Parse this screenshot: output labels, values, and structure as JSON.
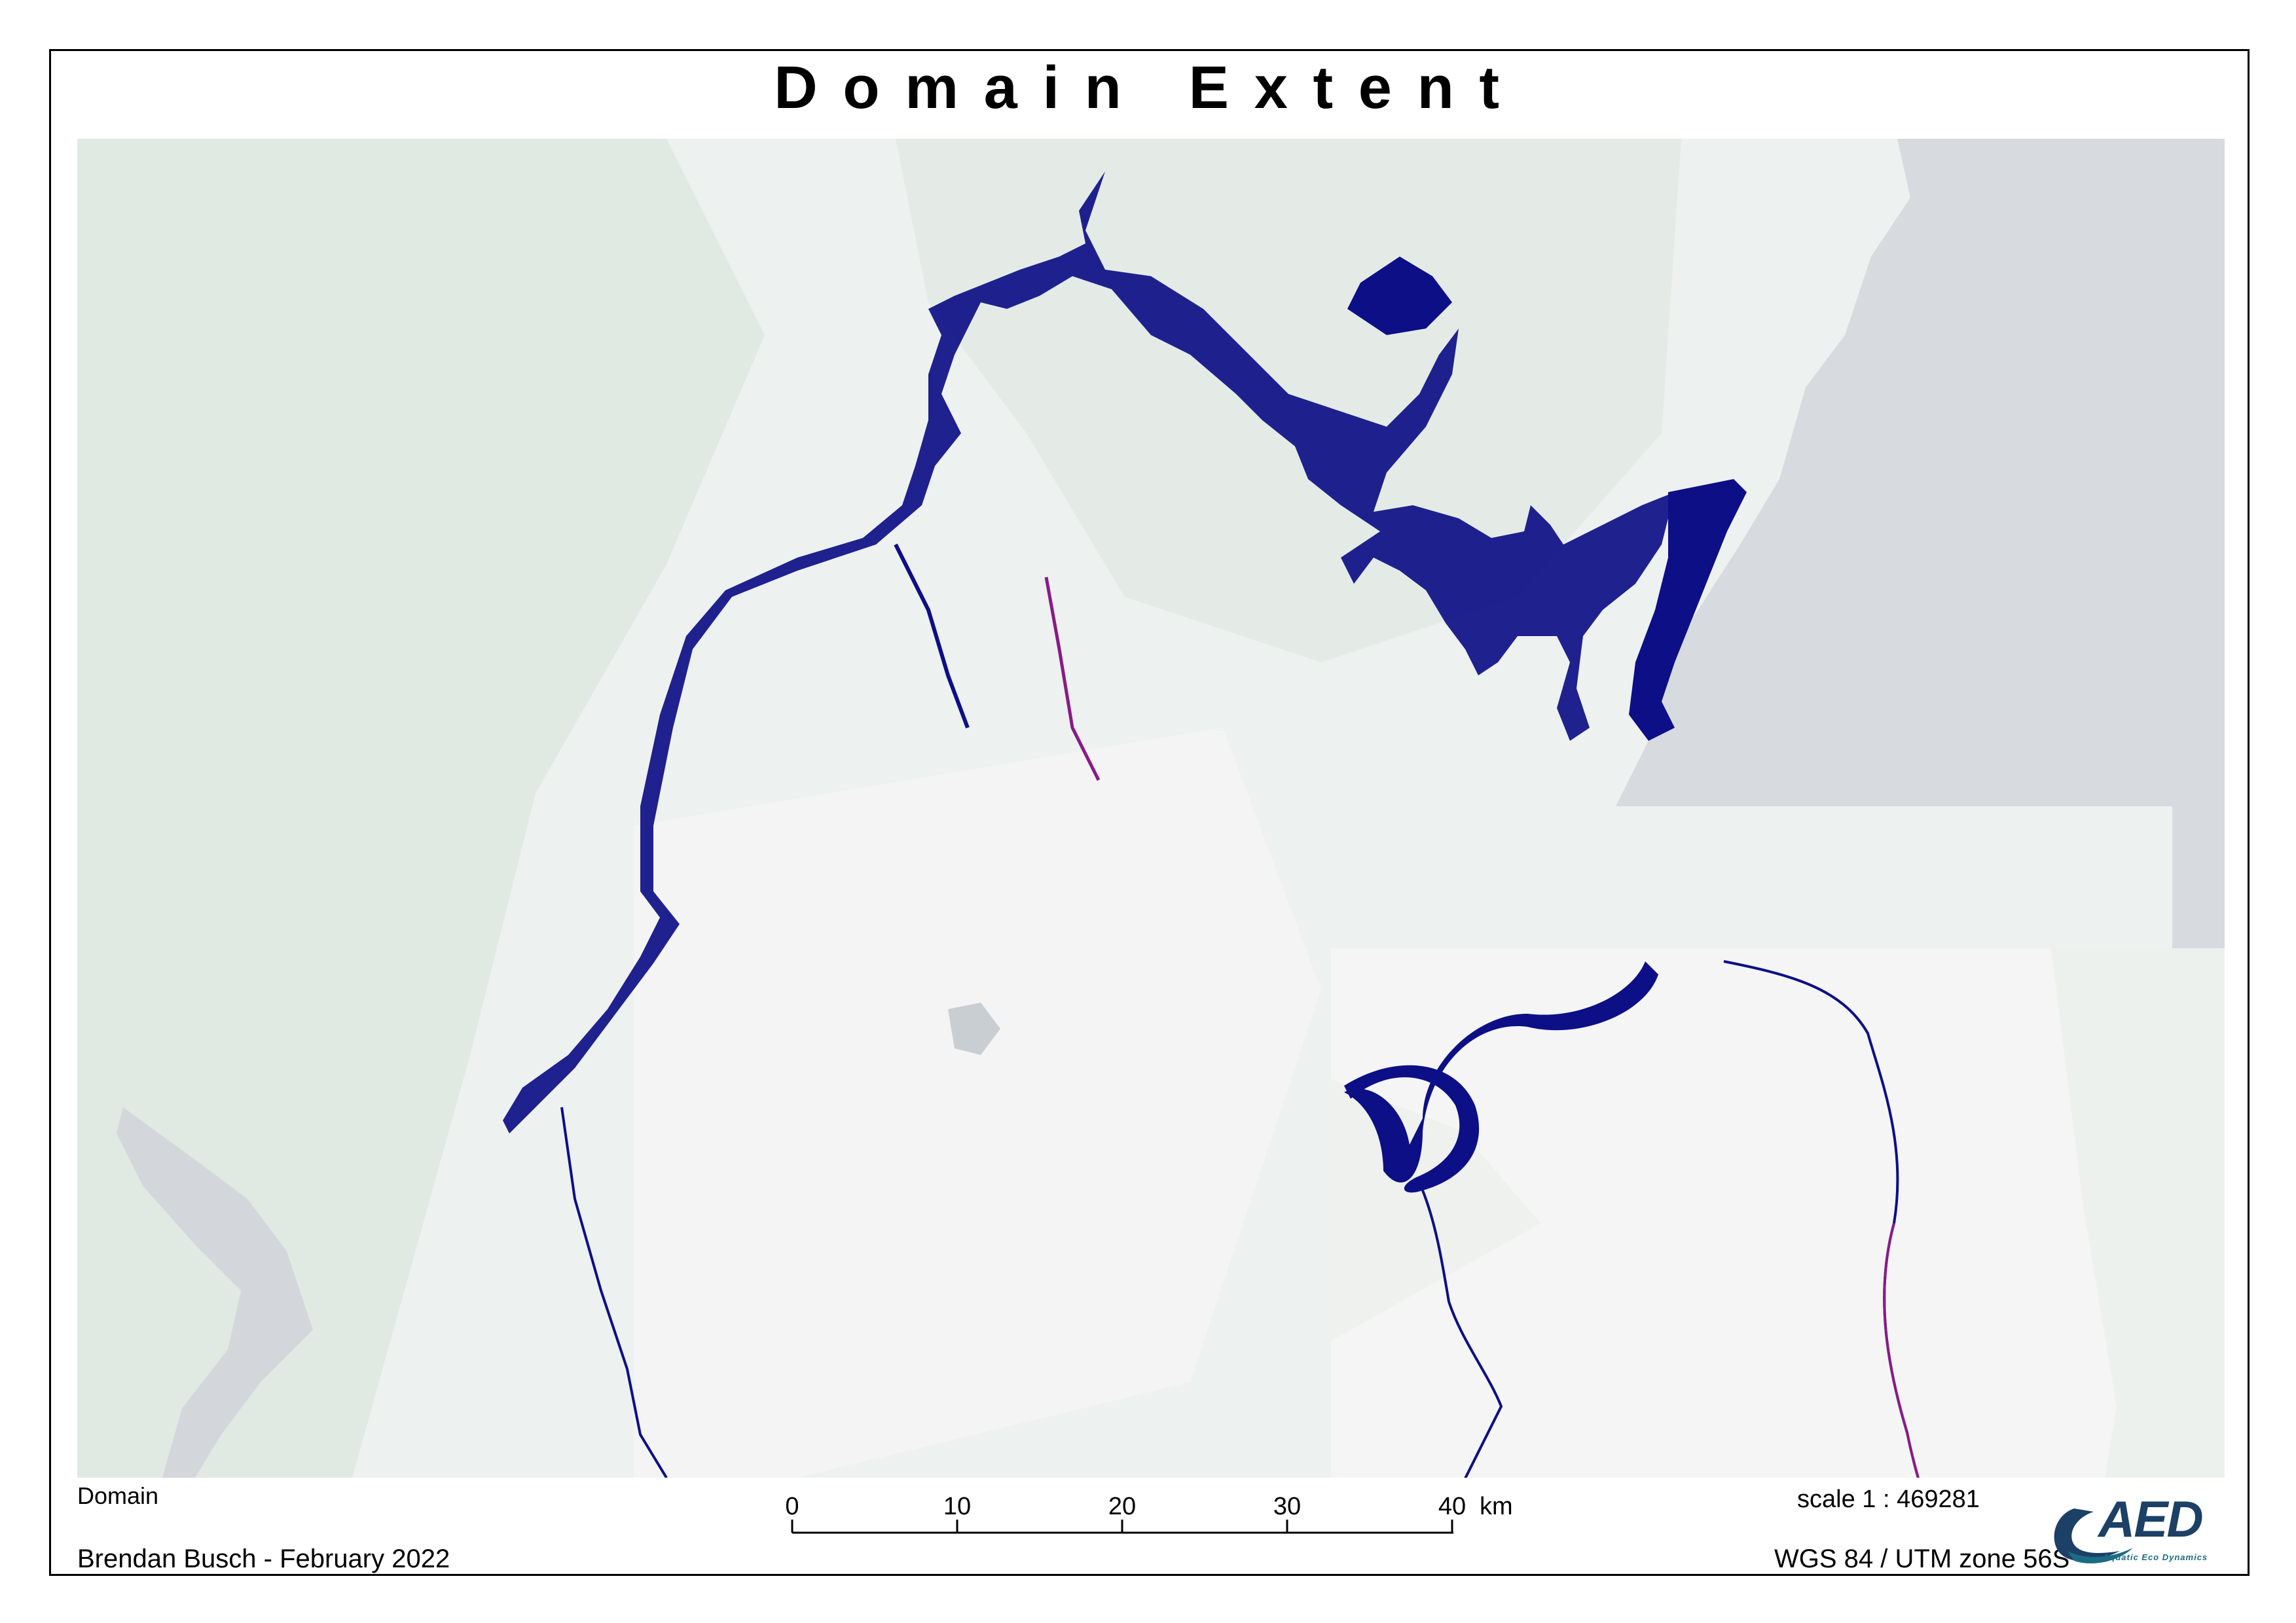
{
  "map": {
    "title": "Domain Extent",
    "legend_label": "Domain",
    "author_line": "Brendan Busch - February 2022",
    "scale_ratio": "scale 1 : 469281",
    "crs": "WGS 84 / UTM zone 56S",
    "scale_bar": {
      "ticks": [
        "0",
        "10",
        "20",
        "30",
        "40"
      ],
      "unit": "km",
      "max_value": 40
    },
    "logo": {
      "name": "AED",
      "tagline": "Aquatic Eco Dynamics"
    },
    "colors": {
      "domain_fill": "#0d0f86",
      "basemap_land": "#edf1ef",
      "basemap_forest": "#e1e9e3",
      "ocean": "#d7dade",
      "inset_background": "#f4f5f4",
      "logo_primary": "#1c4066",
      "logo_accent": "#1c6b86"
    }
  }
}
